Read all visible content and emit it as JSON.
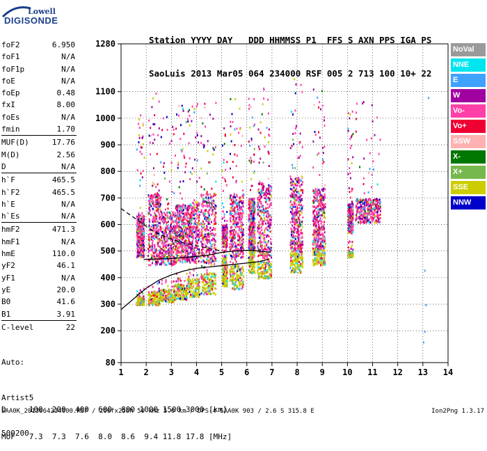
{
  "logo": {
    "line1": "Lowell",
    "line2": "DIGISONDE"
  },
  "header": {
    "line1": "Station YYYY DAY   DDD HHMMSS P1  FFS S AXN PPS IGA PS",
    "line2": "SaoLuis 2013 Mar05 064 234000 RSF 005 2 713 100 10+ 22"
  },
  "params": [
    {
      "k": "foF2",
      "v": "6.950"
    },
    {
      "k": "foF1",
      "v": "N/A"
    },
    {
      "k": "foF1p",
      "v": "N/A"
    },
    {
      "k": "foE",
      "v": "N/A"
    },
    {
      "k": "foEp",
      "v": "0.48"
    },
    {
      "k": "fxI",
      "v": "8.00"
    },
    {
      "k": "foEs",
      "v": "N/A"
    },
    {
      "k": "fmin",
      "v": "1.70"
    },
    {
      "k": "MUF(D)",
      "v": "17.76"
    },
    {
      "k": "M(D)",
      "v": "2.56"
    },
    {
      "k": "D",
      "v": "N/A"
    },
    {
      "k": "h`F",
      "v": "465.5"
    },
    {
      "k": "h`F2",
      "v": "465.5"
    },
    {
      "k": "h`E",
      "v": "N/A"
    },
    {
      "k": "h`Es",
      "v": "N/A"
    },
    {
      "k": "hmF2",
      "v": "471.3"
    },
    {
      "k": "hmF1",
      "v": "N/A"
    },
    {
      "k": "hmE",
      "v": "110.0"
    },
    {
      "k": "yF2",
      "v": "46.1"
    },
    {
      "k": "yF1",
      "v": "N/A"
    },
    {
      "k": "yE",
      "v": "20.0"
    },
    {
      "k": "B0",
      "v": "41.6"
    },
    {
      "k": "B1",
      "v": "3.91"
    },
    {
      "k": "C-level",
      "v": "22"
    }
  ],
  "auto": {
    "line1": "Auto:",
    "line2": "Artist5",
    "line3": "500200"
  },
  "legend": [
    {
      "label": "NoVal",
      "color": "#9a9a9a"
    },
    {
      "label": "NNE",
      "color": "#00e5ee"
    },
    {
      "label": "E",
      "color": "#3fa2ff"
    },
    {
      "label": "W",
      "color": "#a000a0"
    },
    {
      "label": "Vo-",
      "color": "#ff3fa8"
    },
    {
      "label": "Vo+",
      "color": "#ee0033"
    },
    {
      "label": "SSW",
      "color": "#ffb0b0"
    },
    {
      "label": "X-",
      "color": "#007700"
    },
    {
      "label": "X+",
      "color": "#77b84e"
    },
    {
      "label": "SSE",
      "color": "#cccc00"
    },
    {
      "label": "NNW",
      "color": "#0000cc"
    }
  ],
  "dmuf": {
    "line1": "D     100  200  400  600  800 1000 1500 3000 [km]",
    "line2": "MUF   7.3  7.3  7.6  8.0  8.6  9.4 11.8 17.8 [MHz]"
  },
  "footer": {
    "left": "SAA0K_2013064234000.RSF / 260fx256h 50 kHz 5.0 km / DPS-4 SAA0K 903 / 2.6 S 315.8 E",
    "right": "Ion2Png 1.3.17"
  },
  "chart_data": {
    "type": "scatter",
    "xlim": [
      1,
      14
    ],
    "ylim": [
      80,
      1280
    ],
    "x_ticks": [
      1,
      2,
      3,
      4,
      5,
      6,
      7,
      8,
      9,
      10,
      11,
      12,
      13,
      14
    ],
    "y_ticks": [
      80,
      200,
      300,
      400,
      500,
      600,
      700,
      800,
      900,
      1000,
      1100,
      1280
    ],
    "grid": true,
    "frequency_blocks": [
      {
        "x": [
          1.6,
          1.9
        ],
        "echo_heights": [
          [
            300,
            330
          ],
          [
            480,
            640
          ]
        ]
      },
      {
        "x": [
          2.05,
          2.55
        ],
        "echo_heights": [
          [
            300,
            350
          ],
          [
            450,
            720
          ]
        ]
      },
      {
        "x": [
          2.55,
          3.15
        ],
        "echo_heights": [
          [
            310,
            360
          ],
          [
            450,
            650
          ]
        ]
      },
      {
        "x": [
          3.15,
          3.6
        ],
        "echo_heights": [
          [
            320,
            380
          ],
          [
            460,
            680
          ]
        ]
      },
      {
        "x": [
          3.6,
          4.1
        ],
        "echo_heights": [
          [
            330,
            400
          ],
          [
            460,
            690
          ]
        ]
      },
      {
        "x": [
          4.15,
          4.75
        ],
        "echo_heights": [
          [
            340,
            420
          ],
          [
            460,
            720
          ]
        ]
      },
      {
        "x": [
          5.0,
          5.2
        ],
        "echo_heights": [
          [
            370,
            480
          ],
          [
            520,
            600
          ]
        ]
      },
      {
        "x": [
          5.3,
          5.85
        ],
        "echo_heights": [
          [
            360,
            450
          ],
          [
            480,
            720
          ]
        ]
      },
      {
        "x": [
          6.05,
          6.3
        ],
        "echo_heights": [
          [
            420,
            510
          ],
          [
            510,
            700
          ]
        ]
      },
      {
        "x": [
          6.4,
          6.95
        ],
        "echo_heights": [
          [
            400,
            470
          ],
          [
            480,
            760
          ]
        ]
      },
      {
        "x": [
          7.7,
          8.2
        ],
        "echo_heights": [
          [
            420,
            500
          ],
          [
            500,
            780
          ]
        ]
      },
      {
        "x": [
          8.6,
          9.1
        ],
        "echo_heights": [
          [
            450,
            510
          ],
          [
            510,
            740
          ]
        ]
      },
      {
        "x": [
          10.0,
          10.2
        ],
        "echo_heights": [
          [
            480,
            500
          ],
          [
            570,
            680
          ]
        ]
      },
      {
        "x": [
          10.3,
          11.3
        ],
        "echo_heights": [
          [
            610,
            700
          ]
        ]
      }
    ],
    "lines": [
      {
        "style": "solid",
        "points": [
          [
            1,
            280
          ],
          [
            1.5,
            320
          ],
          [
            2,
            360
          ],
          [
            2.5,
            390
          ],
          [
            3,
            410
          ],
          [
            3.5,
            425
          ],
          [
            4,
            435
          ],
          [
            4.5,
            440
          ],
          [
            5,
            445
          ],
          [
            5.5,
            450
          ],
          [
            6,
            455
          ],
          [
            6.5,
            460
          ],
          [
            6.9,
            470
          ]
        ]
      },
      {
        "style": "solid",
        "points": [
          [
            1.9,
            468
          ],
          [
            2.5,
            470
          ],
          [
            3,
            472
          ],
          [
            3.5,
            475
          ],
          [
            4,
            480
          ],
          [
            4.5,
            485
          ],
          [
            5,
            495
          ],
          [
            5.5,
            500
          ],
          [
            6,
            503
          ],
          [
            6.5,
            500
          ],
          [
            6.95,
            495
          ]
        ]
      },
      {
        "style": "dashed",
        "points": [
          [
            1,
            660
          ],
          [
            1.3,
            640
          ],
          [
            1.6,
            620
          ],
          [
            1.9,
            600
          ],
          [
            2.2,
            580
          ],
          [
            2.6,
            560
          ],
          [
            3.0,
            545
          ],
          [
            3.5,
            530
          ],
          [
            4,
            520
          ],
          [
            4.5,
            510
          ],
          [
            5,
            500
          ]
        ]
      }
    ],
    "isolated_points": [
      {
        "x": 13.2,
        "y": 1080
      },
      {
        "x": 13.05,
        "y": 430
      },
      {
        "x": 13.1,
        "y": 300
      },
      {
        "x": 13.05,
        "y": 200
      },
      {
        "x": 13.0,
        "y": 160
      }
    ]
  }
}
